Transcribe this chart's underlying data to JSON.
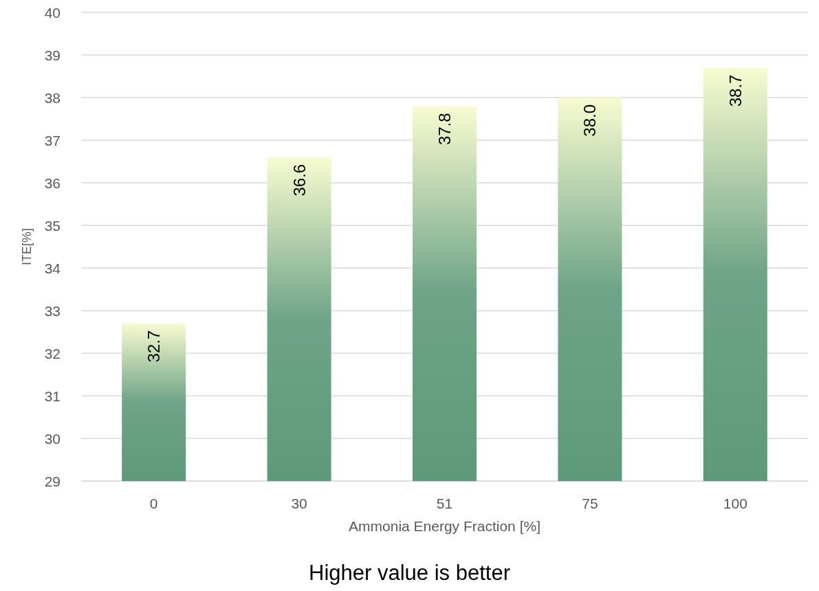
{
  "chart_data": {
    "type": "bar",
    "categories": [
      "0",
      "30",
      "51",
      "75",
      "100"
    ],
    "values": [
      32.7,
      36.6,
      37.8,
      38.0,
      38.7
    ],
    "value_labels": [
      "32.7",
      "36.6",
      "37.8",
      "38.0",
      "38.7"
    ],
    "color": "#5e9a7a",
    "xlabel": "Ammonia Energy Fraction [%]",
    "ylabel": "ITE[%]",
    "ylim": [
      29,
      40
    ],
    "yticks": [
      29,
      30,
      31,
      32,
      33,
      34,
      35,
      36,
      37,
      38,
      39,
      40
    ],
    "grid": "y",
    "annotations": [
      "Higher value is better"
    ]
  }
}
